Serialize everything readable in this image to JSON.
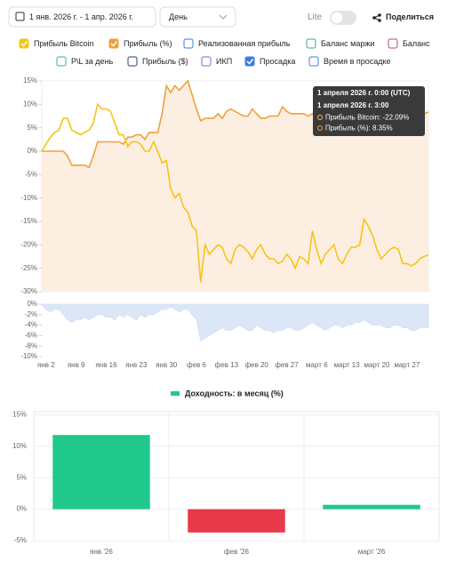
{
  "ui": {
    "date_range": "1 янв. 2026 г. - 1 апр. 2026 г.",
    "interval": "День",
    "lite": "Lite",
    "share": "Поделиться",
    "toggles": [
      {
        "label": "Прибыль Bitcoin",
        "color": "#f5c518",
        "checked": true
      },
      {
        "label": "Прибыль (%)",
        "color": "#f0a03c",
        "checked": true
      },
      {
        "label": "Реализованная прибыль",
        "color": "#3b7de0",
        "checked": false
      },
      {
        "label": "Баланс маржи",
        "color": "#3aaa8c",
        "checked": false
      },
      {
        "label": "Баланс",
        "color": "#c0486a",
        "checked": false
      },
      {
        "label": "P\\L за день",
        "color": "#2fb86b",
        "checked": false
      },
      {
        "label": "Прибыль ($)",
        "color": "#2a3a7a",
        "checked": false
      },
      {
        "label": "ИКП",
        "color": "#9b59c9",
        "checked": false
      },
      {
        "label": "Просадка",
        "color": "#3b7de0",
        "checked": true
      },
      {
        "label": "Время в просадке",
        "color": "#3b7de0",
        "checked": false
      }
    ],
    "tooltip": {
      "title": "1 апреля 2026 г. 0:00 (UTC)",
      "subtitle": "1 апреля 2026 г. 3:00",
      "lines": [
        "Прибыль Bitcoin: -22.09%",
        "Прибыль (%): 8.35%"
      ]
    }
  },
  "chart_data": [
    {
      "type": "line",
      "categories": [
        null,
        "янв 2",
        null,
        null,
        null,
        null,
        null,
        null,
        "янв 9",
        null,
        null,
        null,
        null,
        null,
        null,
        "янв 16",
        null,
        null,
        null,
        null,
        null,
        null,
        "янв 23",
        null,
        null,
        null,
        null,
        null,
        null,
        "янв 30",
        null,
        null,
        null,
        null,
        null,
        null,
        "фев 6",
        null,
        null,
        null,
        null,
        null,
        null,
        "фев 13",
        null,
        null,
        null,
        null,
        null,
        null,
        "фев 20",
        null,
        null,
        null,
        null,
        null,
        null,
        "фев 27",
        null,
        null,
        null,
        null,
        null,
        null,
        "март 6",
        null,
        null,
        null,
        null,
        null,
        null,
        "март 13",
        null,
        null,
        null,
        null,
        null,
        null,
        "март 20",
        null,
        null,
        null,
        null,
        null,
        null,
        "март 27",
        null,
        null,
        null,
        null,
        null
      ],
      "ylim": [
        -30,
        15
      ],
      "yticks": [
        {
          "value": 15,
          "label": "15%"
        },
        {
          "value": 10,
          "label": "10%"
        },
        {
          "value": 5,
          "label": "5%"
        },
        {
          "value": 0,
          "label": "0%"
        },
        {
          "value": -5,
          "label": "-5%"
        },
        {
          "value": -10,
          "label": "-10%"
        },
        {
          "value": -15,
          "label": "-15%"
        },
        {
          "value": -20,
          "label": "-20%"
        },
        {
          "value": -25,
          "label": "-25%"
        },
        {
          "value": -30,
          "label": "-30%"
        }
      ],
      "y2lim": [
        -10,
        0
      ],
      "y2ticks": [
        {
          "value": 0,
          "label": "0%"
        },
        {
          "value": -2,
          "label": "-2%"
        },
        {
          "value": -4,
          "label": "-4%"
        },
        {
          "value": -6,
          "label": "-6%"
        },
        {
          "value": -8,
          "label": "-8%"
        },
        {
          "value": -10,
          "label": "-10%"
        }
      ],
      "series": [
        {
          "color": "#f5c518",
          "values": [
            0,
            1.5,
            3,
            4,
            4.5,
            7,
            7,
            4.5,
            4,
            3.5,
            4,
            4.5,
            6,
            10,
            9,
            9,
            8.5,
            6,
            3.5,
            3.5,
            1,
            2,
            2,
            1.5,
            0,
            0,
            2,
            0,
            -2.5,
            -2,
            -8,
            -10,
            -9,
            -12,
            -13,
            -16,
            -17,
            -28,
            -20,
            -22,
            -21,
            -20,
            -20.5,
            -23,
            -24,
            -21,
            -20,
            -20.5,
            -21.5,
            -23,
            -21,
            -20,
            -22,
            -23,
            -23,
            -24,
            -23.5,
            -22,
            -23,
            -25,
            -22.5,
            -23,
            -24,
            -17,
            -21,
            -24,
            -22,
            -21,
            -20,
            -23,
            -24,
            -22,
            -20.5,
            -20.5,
            -20,
            -14.5,
            -16,
            -18,
            -21,
            -23,
            -22,
            -21,
            -20.5,
            -21,
            -24,
            -24,
            -24.5,
            -24,
            -23,
            -22.5,
            -22.09
          ]
        },
        {
          "color": "#f0a03c",
          "fill": "#fdeee2",
          "values": [
            0,
            0,
            0,
            0,
            0,
            0,
            -1,
            -3,
            -3,
            -3,
            -3,
            -3.5,
            -1,
            2,
            2,
            2,
            2,
            2,
            2,
            1.5,
            3,
            3,
            3.5,
            3.5,
            2.5,
            4,
            4,
            4,
            8,
            14,
            12.5,
            14,
            13,
            14,
            15,
            12,
            9,
            6.5,
            7,
            7,
            7,
            8,
            7,
            8.5,
            9,
            8.5,
            8,
            7.5,
            7.5,
            9,
            8,
            7,
            7,
            7.5,
            7.5,
            7.5,
            9.5,
            8.5,
            8,
            8,
            8,
            8,
            7.5,
            8,
            8,
            8,
            8.5,
            8,
            8,
            8,
            8.5,
            8,
            8.5,
            8,
            8,
            8.5,
            8,
            8,
            8.5,
            8,
            8,
            8.5,
            8,
            8,
            8.5,
            8,
            8,
            8.5,
            8,
            8,
            8.35
          ]
        },
        {
          "color": "#dbe7f6",
          "axis": "y2",
          "values": [
            0,
            -1,
            -1.5,
            -1,
            -1,
            -2,
            -3,
            -3.5,
            -3,
            -3,
            -2.5,
            -3,
            -2.5,
            -2,
            -2,
            -2.5,
            -2.5,
            -3,
            -2,
            -2.5,
            -2,
            -2.5,
            -3,
            -2,
            -2.5,
            -2,
            -2,
            -1.5,
            -1,
            -1,
            -0.5,
            -1,
            -1.5,
            -1,
            -1,
            -2,
            -3,
            -7,
            -6.5,
            -6,
            -5.5,
            -5,
            -4.5,
            -5,
            -5,
            -4.5,
            -4,
            -4.5,
            -5,
            -5,
            -4,
            -4.5,
            -5,
            -5,
            -5.5,
            -5,
            -5,
            -4.5,
            -4.5,
            -5,
            -5,
            -4.5,
            -4,
            -3.5,
            -4,
            -4.5,
            -5,
            -4.5,
            -4,
            -4,
            -4.5,
            -4,
            -4,
            -3.5,
            -3.5,
            -3,
            -3.5,
            -4,
            -4,
            -4,
            -4.5,
            -4.5,
            -4,
            -4,
            -4.5,
            -4.5,
            -5,
            -5,
            -4.5,
            -4.5,
            -4.5
          ]
        }
      ]
    },
    {
      "type": "bar",
      "categories": [
        "янв '26",
        "фев '26",
        "март '26"
      ],
      "series": [
        {
          "name": "Доходность: в месяц (%)",
          "color": "#20c98b",
          "colors": [
            "#20c98b",
            "#e8394a",
            "#20c98b"
          ],
          "values": [
            11.8,
            -3.7,
            0.7
          ]
        }
      ],
      "ylim": [
        -5,
        15.5
      ],
      "yticks": [
        {
          "value": -5,
          "label": "-5%"
        },
        {
          "value": 0,
          "label": "0%"
        },
        {
          "value": 5,
          "label": "5%"
        },
        {
          "value": 10,
          "label": "10%"
        },
        {
          "value": 15,
          "label": "15%"
        }
      ],
      "grid": true
    }
  ]
}
